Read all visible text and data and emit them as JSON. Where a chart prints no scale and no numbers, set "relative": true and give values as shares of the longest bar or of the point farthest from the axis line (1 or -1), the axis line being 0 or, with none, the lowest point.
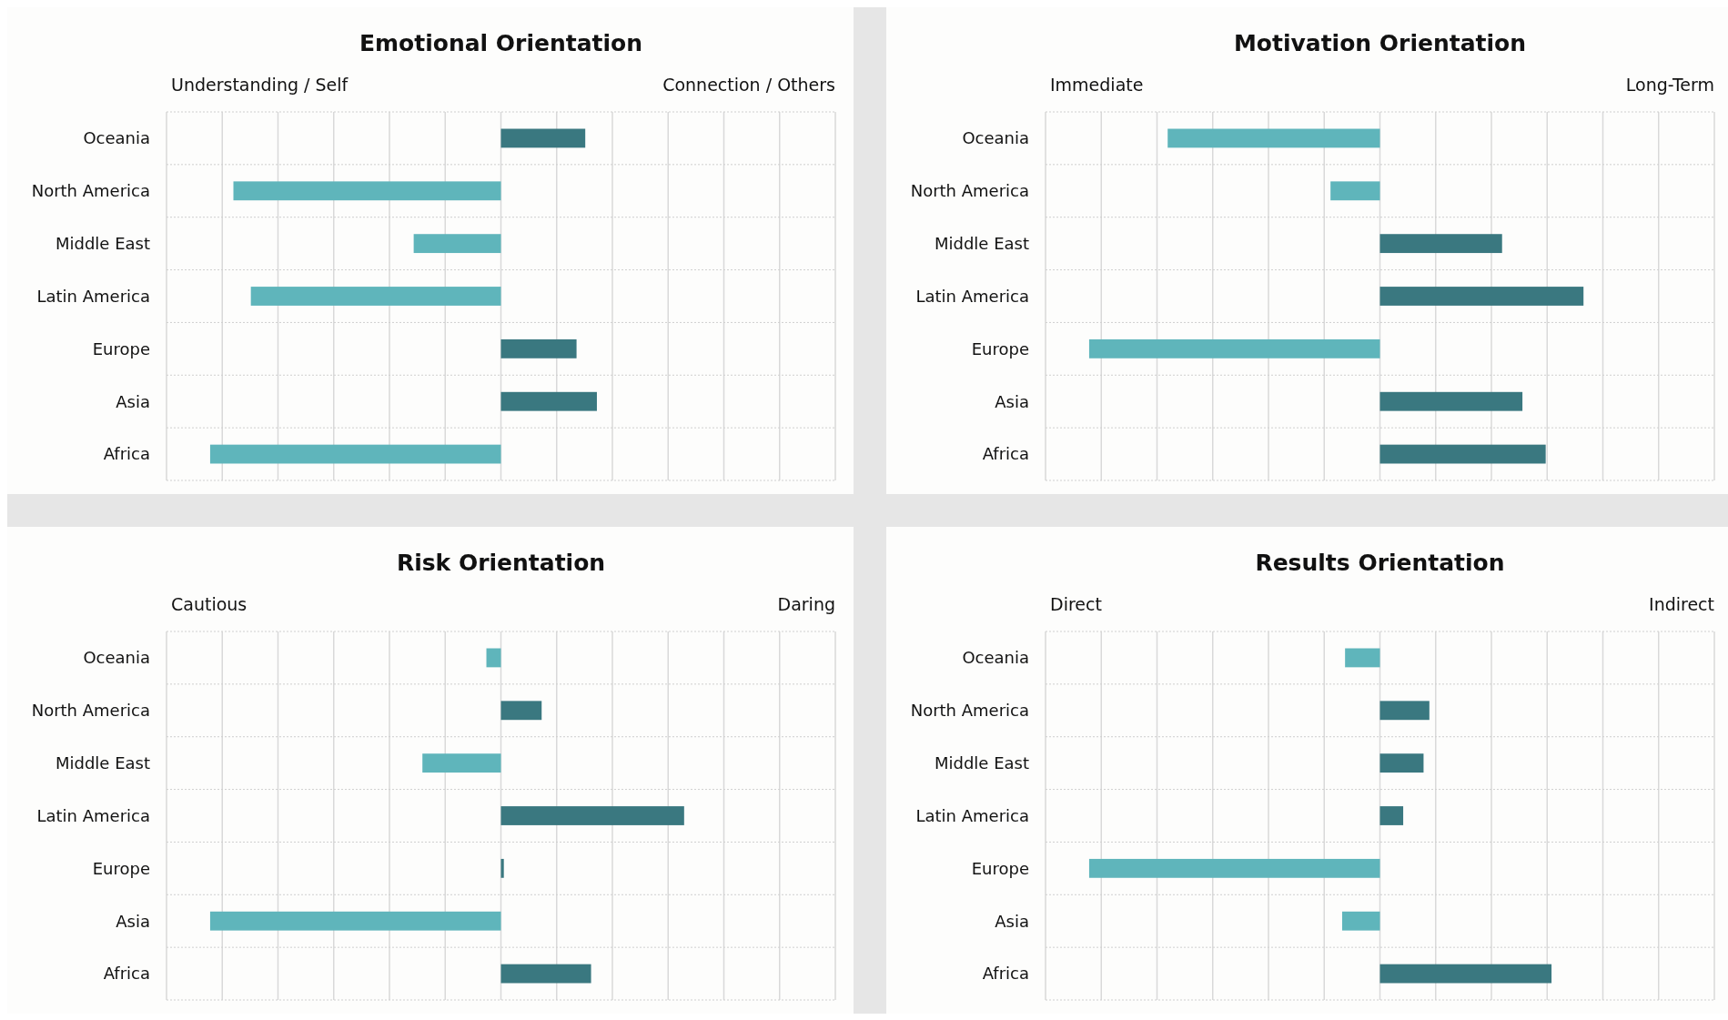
{
  "chart_data": [
    {
      "type": "bar",
      "orientation": "horizontal",
      "relative": true,
      "grid": true,
      "title": "Emotional Orientation",
      "annotations": [
        "Understanding / Self",
        "Connection / Others"
      ],
      "categories": [
        "Oceania",
        "North America",
        "Middle East",
        "Latin America",
        "Europe",
        "Asia",
        "Africa"
      ],
      "values": [
        0.29,
        -0.92,
        -0.3,
        -0.86,
        0.26,
        0.33,
        -1
      ],
      "colors": [
        "#3a7880",
        "#5fb5bb",
        "#5fb5bb",
        "#5fb5bb",
        "#3a7880",
        "#3a7880",
        "#5fb5bb"
      ]
    },
    {
      "type": "bar",
      "orientation": "horizontal",
      "relative": true,
      "grid": true,
      "title": "Motivation Orientation",
      "annotations": [
        "Immediate",
        "Long-Term"
      ],
      "categories": [
        "Oceania",
        "North America",
        "Middle East",
        "Latin America",
        "Europe",
        "Asia",
        "Africa"
      ],
      "values": [
        -0.73,
        -0.17,
        0.42,
        0.7,
        -1,
        0.49,
        0.57
      ],
      "colors": [
        "#5fb5bb",
        "#5fb5bb",
        "#3a7880",
        "#3a7880",
        "#5fb5bb",
        "#3a7880",
        "#3a7880"
      ]
    },
    {
      "type": "bar",
      "orientation": "horizontal",
      "relative": true,
      "grid": true,
      "title": "Risk Orientation",
      "annotations": [
        "Cautious",
        "Daring"
      ],
      "categories": [
        "Oceania",
        "North America",
        "Middle East",
        "Latin America",
        "Europe",
        "Asia",
        "Africa"
      ],
      "values": [
        -0.05,
        0.14,
        -0.27,
        0.63,
        0.01,
        -1,
        0.31
      ],
      "colors": [
        "#5fb5bb",
        "#3a7880",
        "#5fb5bb",
        "#3a7880",
        "#3a7880",
        "#5fb5bb",
        "#3a7880"
      ]
    },
    {
      "type": "bar",
      "orientation": "horizontal",
      "relative": true,
      "grid": true,
      "title": "Results Orientation",
      "annotations": [
        "Direct",
        "Indirect"
      ],
      "categories": [
        "Oceania",
        "North America",
        "Middle East",
        "Latin America",
        "Europe",
        "Asia",
        "Africa"
      ],
      "values": [
        -0.12,
        0.17,
        0.15,
        0.08,
        -1,
        -0.13,
        0.59
      ],
      "colors": [
        "#5fb5bb",
        "#3a7880",
        "#3a7880",
        "#3a7880",
        "#5fb5bb",
        "#5fb5bb",
        "#3a7880"
      ]
    }
  ]
}
